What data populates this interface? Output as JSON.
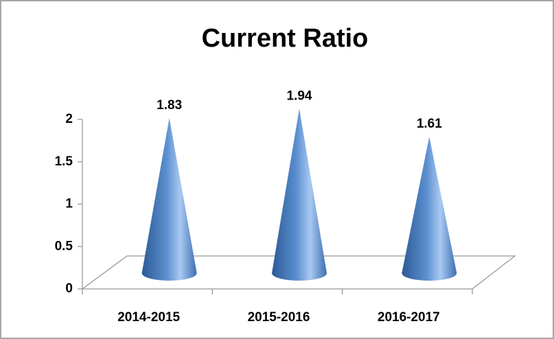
{
  "chart_data": {
    "type": "cone",
    "title": "Current Ratio",
    "categories": [
      "2014-2015",
      "2015-2016",
      "2016-2017"
    ],
    "values": [
      1.83,
      1.94,
      1.61
    ],
    "color": "#4f81bd",
    "ylim": [
      0,
      2
    ],
    "yticks": [
      0,
      0.5,
      1,
      1.5,
      2
    ]
  }
}
